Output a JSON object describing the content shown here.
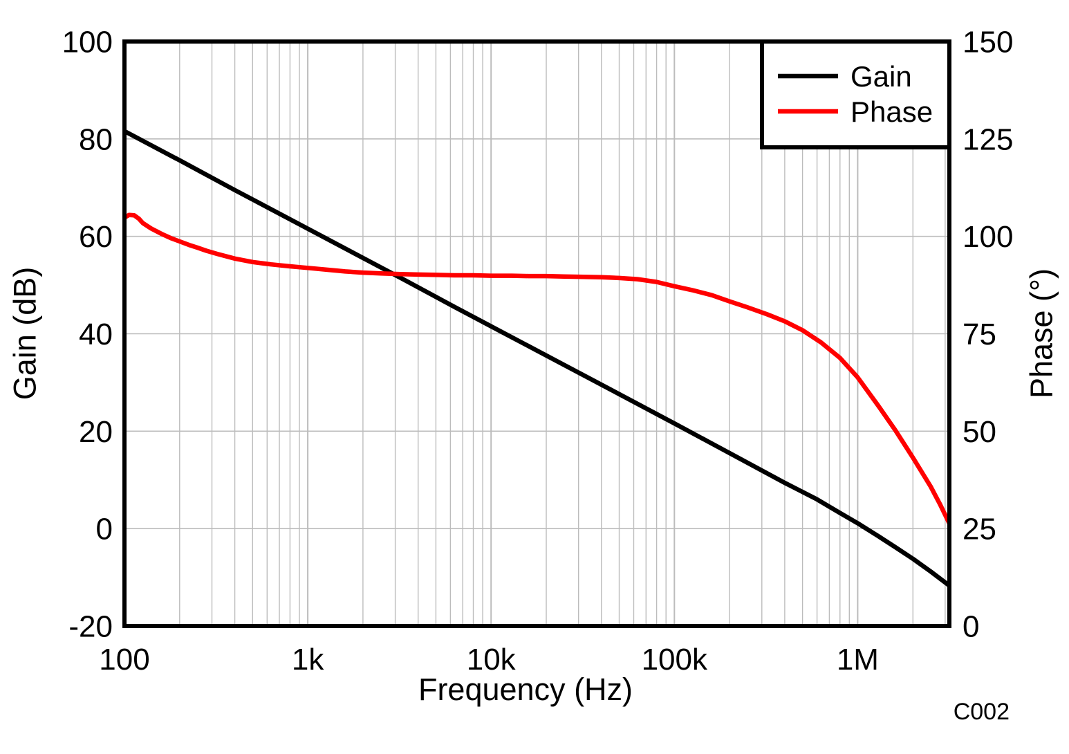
{
  "figure": {
    "watermark": "C002",
    "colors": {
      "gain": "#000000",
      "phase": "#ff0000",
      "grid": "#bcbcbc",
      "frame": "#000000",
      "watermark": "#a7a9ac",
      "background": "#ffffff"
    }
  },
  "chart_data": {
    "type": "line",
    "title": "",
    "grid": true,
    "x_axis": {
      "label": "Frequency (Hz)",
      "scale": "log",
      "min": 100,
      "max": 3162278,
      "ticks": [
        {
          "value": 100,
          "label": "100"
        },
        {
          "value": 1000,
          "label": "1k"
        },
        {
          "value": 10000,
          "label": "10k"
        },
        {
          "value": 100000,
          "label": "100k"
        },
        {
          "value": 1000000,
          "label": "1M"
        }
      ]
    },
    "y_left_axis": {
      "label": "Gain (dB)",
      "min": -20,
      "max": 100,
      "ticks": [
        {
          "value": 100,
          "label": "100"
        },
        {
          "value": 80,
          "label": "80"
        },
        {
          "value": 60,
          "label": "60"
        },
        {
          "value": 40,
          "label": "40"
        },
        {
          "value": 20,
          "label": "20"
        },
        {
          "value": 0,
          "label": "0"
        },
        {
          "value": -20,
          "label": "-20"
        }
      ]
    },
    "y_right_axis": {
      "label": "Phase (°)",
      "min": 0,
      "max": 150,
      "ticks": [
        {
          "value": 150,
          "label": "150"
        },
        {
          "value": 125,
          "label": "125"
        },
        {
          "value": 100,
          "label": "100"
        },
        {
          "value": 75,
          "label": "75"
        },
        {
          "value": 50,
          "label": "50"
        },
        {
          "value": 25,
          "label": "25"
        },
        {
          "value": 0,
          "label": "0"
        }
      ]
    },
    "legend": {
      "position": "top-right",
      "entries": [
        {
          "label": "Gain",
          "color": "#000000"
        },
        {
          "label": "Phase",
          "color": "#ff0000"
        }
      ]
    },
    "series": [
      {
        "name": "Gain",
        "axis": "left",
        "color": "#000000",
        "points": [
          [
            100,
            81.6
          ],
          [
            200,
            75.6
          ],
          [
            400,
            69.5
          ],
          [
            800,
            63.5
          ],
          [
            1600,
            57.5
          ],
          [
            3200,
            51.5
          ],
          [
            6400,
            45.4
          ],
          [
            12800,
            39.4
          ],
          [
            25600,
            33.4
          ],
          [
            51200,
            27.4
          ],
          [
            100000,
            21.6
          ],
          [
            200000,
            15.5
          ],
          [
            400000,
            9.4
          ],
          [
            600000,
            6.0
          ],
          [
            800000,
            3.2
          ],
          [
            1000000,
            1.1
          ],
          [
            1300000,
            -1.6
          ],
          [
            1600000,
            -3.8
          ],
          [
            2000000,
            -6.2
          ],
          [
            2500000,
            -8.8
          ],
          [
            3162278,
            -11.7
          ]
        ]
      },
      {
        "name": "Phase",
        "axis": "right",
        "color": "#ff0000",
        "points": [
          [
            100,
            104.8
          ],
          [
            106,
            105.5
          ],
          [
            113,
            105.4
          ],
          [
            120,
            104.5
          ],
          [
            126,
            103.4
          ],
          [
            140,
            102.0
          ],
          [
            160,
            100.6
          ],
          [
            180,
            99.5
          ],
          [
            200,
            98.7
          ],
          [
            225,
            97.8
          ],
          [
            250,
            97.1
          ],
          [
            280,
            96.3
          ],
          [
            320,
            95.5
          ],
          [
            400,
            94.3
          ],
          [
            500,
            93.4
          ],
          [
            630,
            92.8
          ],
          [
            800,
            92.3
          ],
          [
            1000,
            91.9
          ],
          [
            1300,
            91.4
          ],
          [
            1600,
            91.0
          ],
          [
            2000,
            90.7
          ],
          [
            2500,
            90.5
          ],
          [
            3200,
            90.3
          ],
          [
            4000,
            90.2
          ],
          [
            5000,
            90.1
          ],
          [
            6300,
            90.0
          ],
          [
            8000,
            90.0
          ],
          [
            10000,
            89.9
          ],
          [
            13000,
            89.9
          ],
          [
            16000,
            89.8
          ],
          [
            20000,
            89.8
          ],
          [
            25000,
            89.7
          ],
          [
            32000,
            89.6
          ],
          [
            40000,
            89.5
          ],
          [
            50000,
            89.3
          ],
          [
            63000,
            89.0
          ],
          [
            80000,
            88.3
          ],
          [
            100000,
            87.2
          ],
          [
            125000,
            86.2
          ],
          [
            160000,
            84.9
          ],
          [
            200000,
            83.3
          ],
          [
            250000,
            81.8
          ],
          [
            320000,
            80.0
          ],
          [
            400000,
            78.2
          ],
          [
            500000,
            75.9
          ],
          [
            630000,
            72.8
          ],
          [
            800000,
            68.8
          ],
          [
            1000000,
            63.8
          ],
          [
            1300000,
            56.4
          ],
          [
            1600000,
            50.3
          ],
          [
            2000000,
            43.2
          ],
          [
            2500000,
            35.8
          ],
          [
            2800000,
            31.4
          ],
          [
            3162278,
            26.3
          ]
        ]
      }
    ]
  }
}
